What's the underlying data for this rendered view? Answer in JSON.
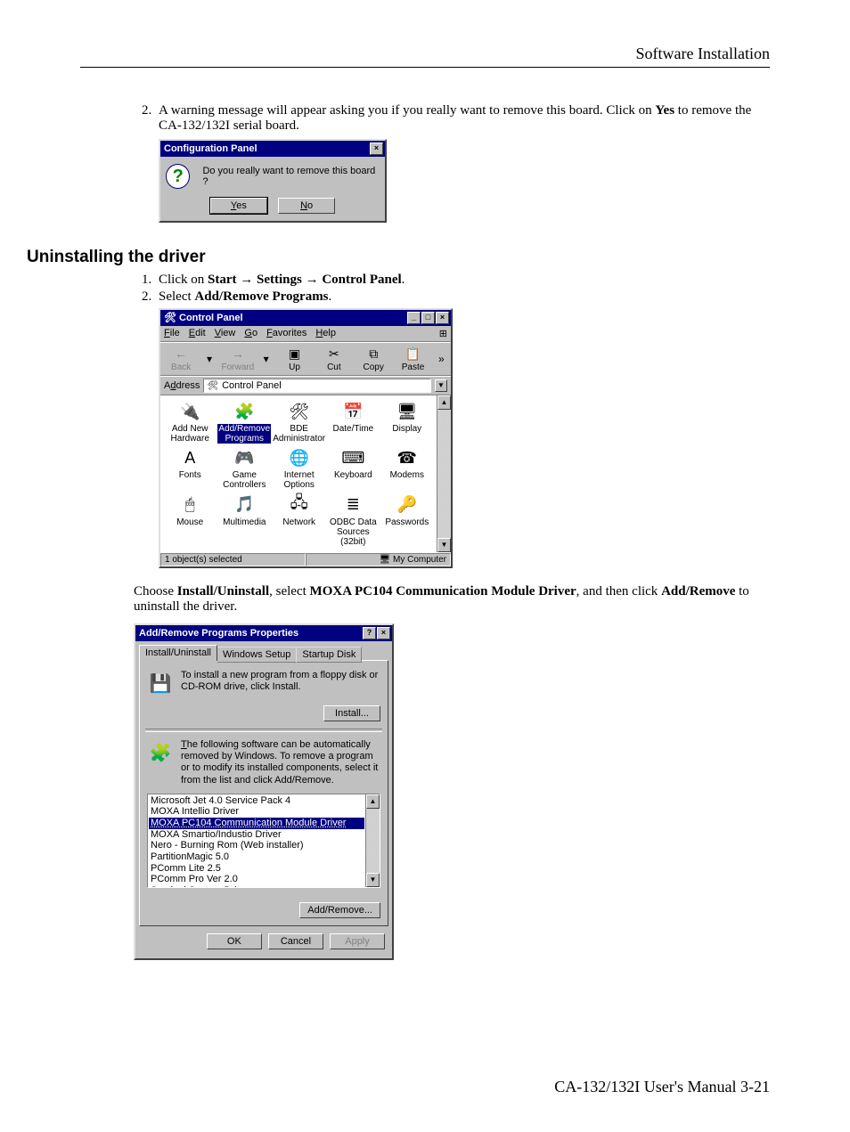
{
  "page": {
    "running_head": "Software Installation",
    "footer": "CA-132/132I  User's Manual  3-21"
  },
  "step2": {
    "num": "2.",
    "text_a": "A warning message will appear asking you if you really want to remove this board. Click on ",
    "text_b": "Yes",
    "text_c": " to remove the CA-132/132I serial board."
  },
  "confirm_dialog": {
    "title": "Configuration Panel",
    "message": "Do you really want to remove this board ?",
    "yes": "Yes",
    "no": "No"
  },
  "heading": "Uninstalling the driver",
  "steps_b": {
    "s1_a": "Click on ",
    "s1_b1": "Start",
    "s1_arrow": " → ",
    "s1_b2": "Settings",
    "s1_b3": "Control Panel",
    "s1_d": ".",
    "s2_a": "Select ",
    "s2_b": "Add/Remove Programs",
    "s2_c": "."
  },
  "cp_window": {
    "title": "Control Panel",
    "menus": [
      "File",
      "Edit",
      "View",
      "Go",
      "Favorites",
      "Help"
    ],
    "tools": [
      {
        "label": "Back",
        "glyph": "←",
        "enabled": false,
        "drop": true
      },
      {
        "label": "Forward",
        "glyph": "→",
        "enabled": false,
        "drop": true
      },
      {
        "label": "Up",
        "glyph": "▣",
        "enabled": true
      },
      {
        "label": "Cut",
        "glyph": "✂",
        "enabled": true
      },
      {
        "label": "Copy",
        "glyph": "⧉",
        "enabled": true
      },
      {
        "label": "Paste",
        "glyph": "📋",
        "enabled": true
      }
    ],
    "more": "»",
    "address_label": "Address",
    "address_value": "Control Panel",
    "items": [
      {
        "label": "Add New Hardware",
        "glyph": "🔌"
      },
      {
        "label": "Add/Remove Programs",
        "glyph": "🧩",
        "sel": true
      },
      {
        "label": "BDE Administrator",
        "glyph": "🛠"
      },
      {
        "label": "Date/Time",
        "glyph": "📅"
      },
      {
        "label": "Display",
        "glyph": "🖥"
      },
      {
        "label": "Fonts",
        "glyph": "A"
      },
      {
        "label": "Game Controllers",
        "glyph": "🎮"
      },
      {
        "label": "Internet Options",
        "glyph": "🌐"
      },
      {
        "label": "Keyboard",
        "glyph": "⌨"
      },
      {
        "label": "Modems",
        "glyph": "☎"
      },
      {
        "label": "Mouse",
        "glyph": "🖱"
      },
      {
        "label": "Multimedia",
        "glyph": "🎵"
      },
      {
        "label": "Network",
        "glyph": "🖧"
      },
      {
        "label": "ODBC Data Sources (32bit)",
        "glyph": "≣"
      },
      {
        "label": "Passwords",
        "glyph": "🔑"
      }
    ],
    "status_left": "1 object(s) selected",
    "status_right": "My Computer"
  },
  "para3": {
    "a": "Choose ",
    "b1": "Install/Uninstall",
    "c1": ", select ",
    "b2": "MOXA PC104 Communication Module Driver",
    "c2": ", and then click ",
    "b3": "Add/Remove",
    "c3": " to uninstall the driver."
  },
  "ar_dialog": {
    "title": "Add/Remove Programs Properties",
    "tabs": [
      "Install/Uninstall",
      "Windows Setup",
      "Startup Disk"
    ],
    "install_text": "To install a new program from a floppy disk or CD-ROM drive, click Install.",
    "install_btn": "Install...",
    "remove_text": "The following software can be automatically removed by Windows. To remove a program or to modify its installed components, select it from the list and click Add/Remove.",
    "list": [
      "Microsoft Jet 4.0 Service Pack 4",
      "MOXA Intellio Driver",
      "MOXA PC104 Communication Module Driver",
      "MOXA Smartio/Industio Driver",
      "Nero - Burning Rom (Web installer)",
      "PartitionMagic 5.0",
      "PComm Lite 2.5",
      "PComm Pro Ver 2.0",
      "Sentinel System Driver"
    ],
    "selected_index": 2,
    "addremove_btn": "Add/Remove...",
    "ok": "OK",
    "cancel": "Cancel",
    "apply": "Apply"
  }
}
